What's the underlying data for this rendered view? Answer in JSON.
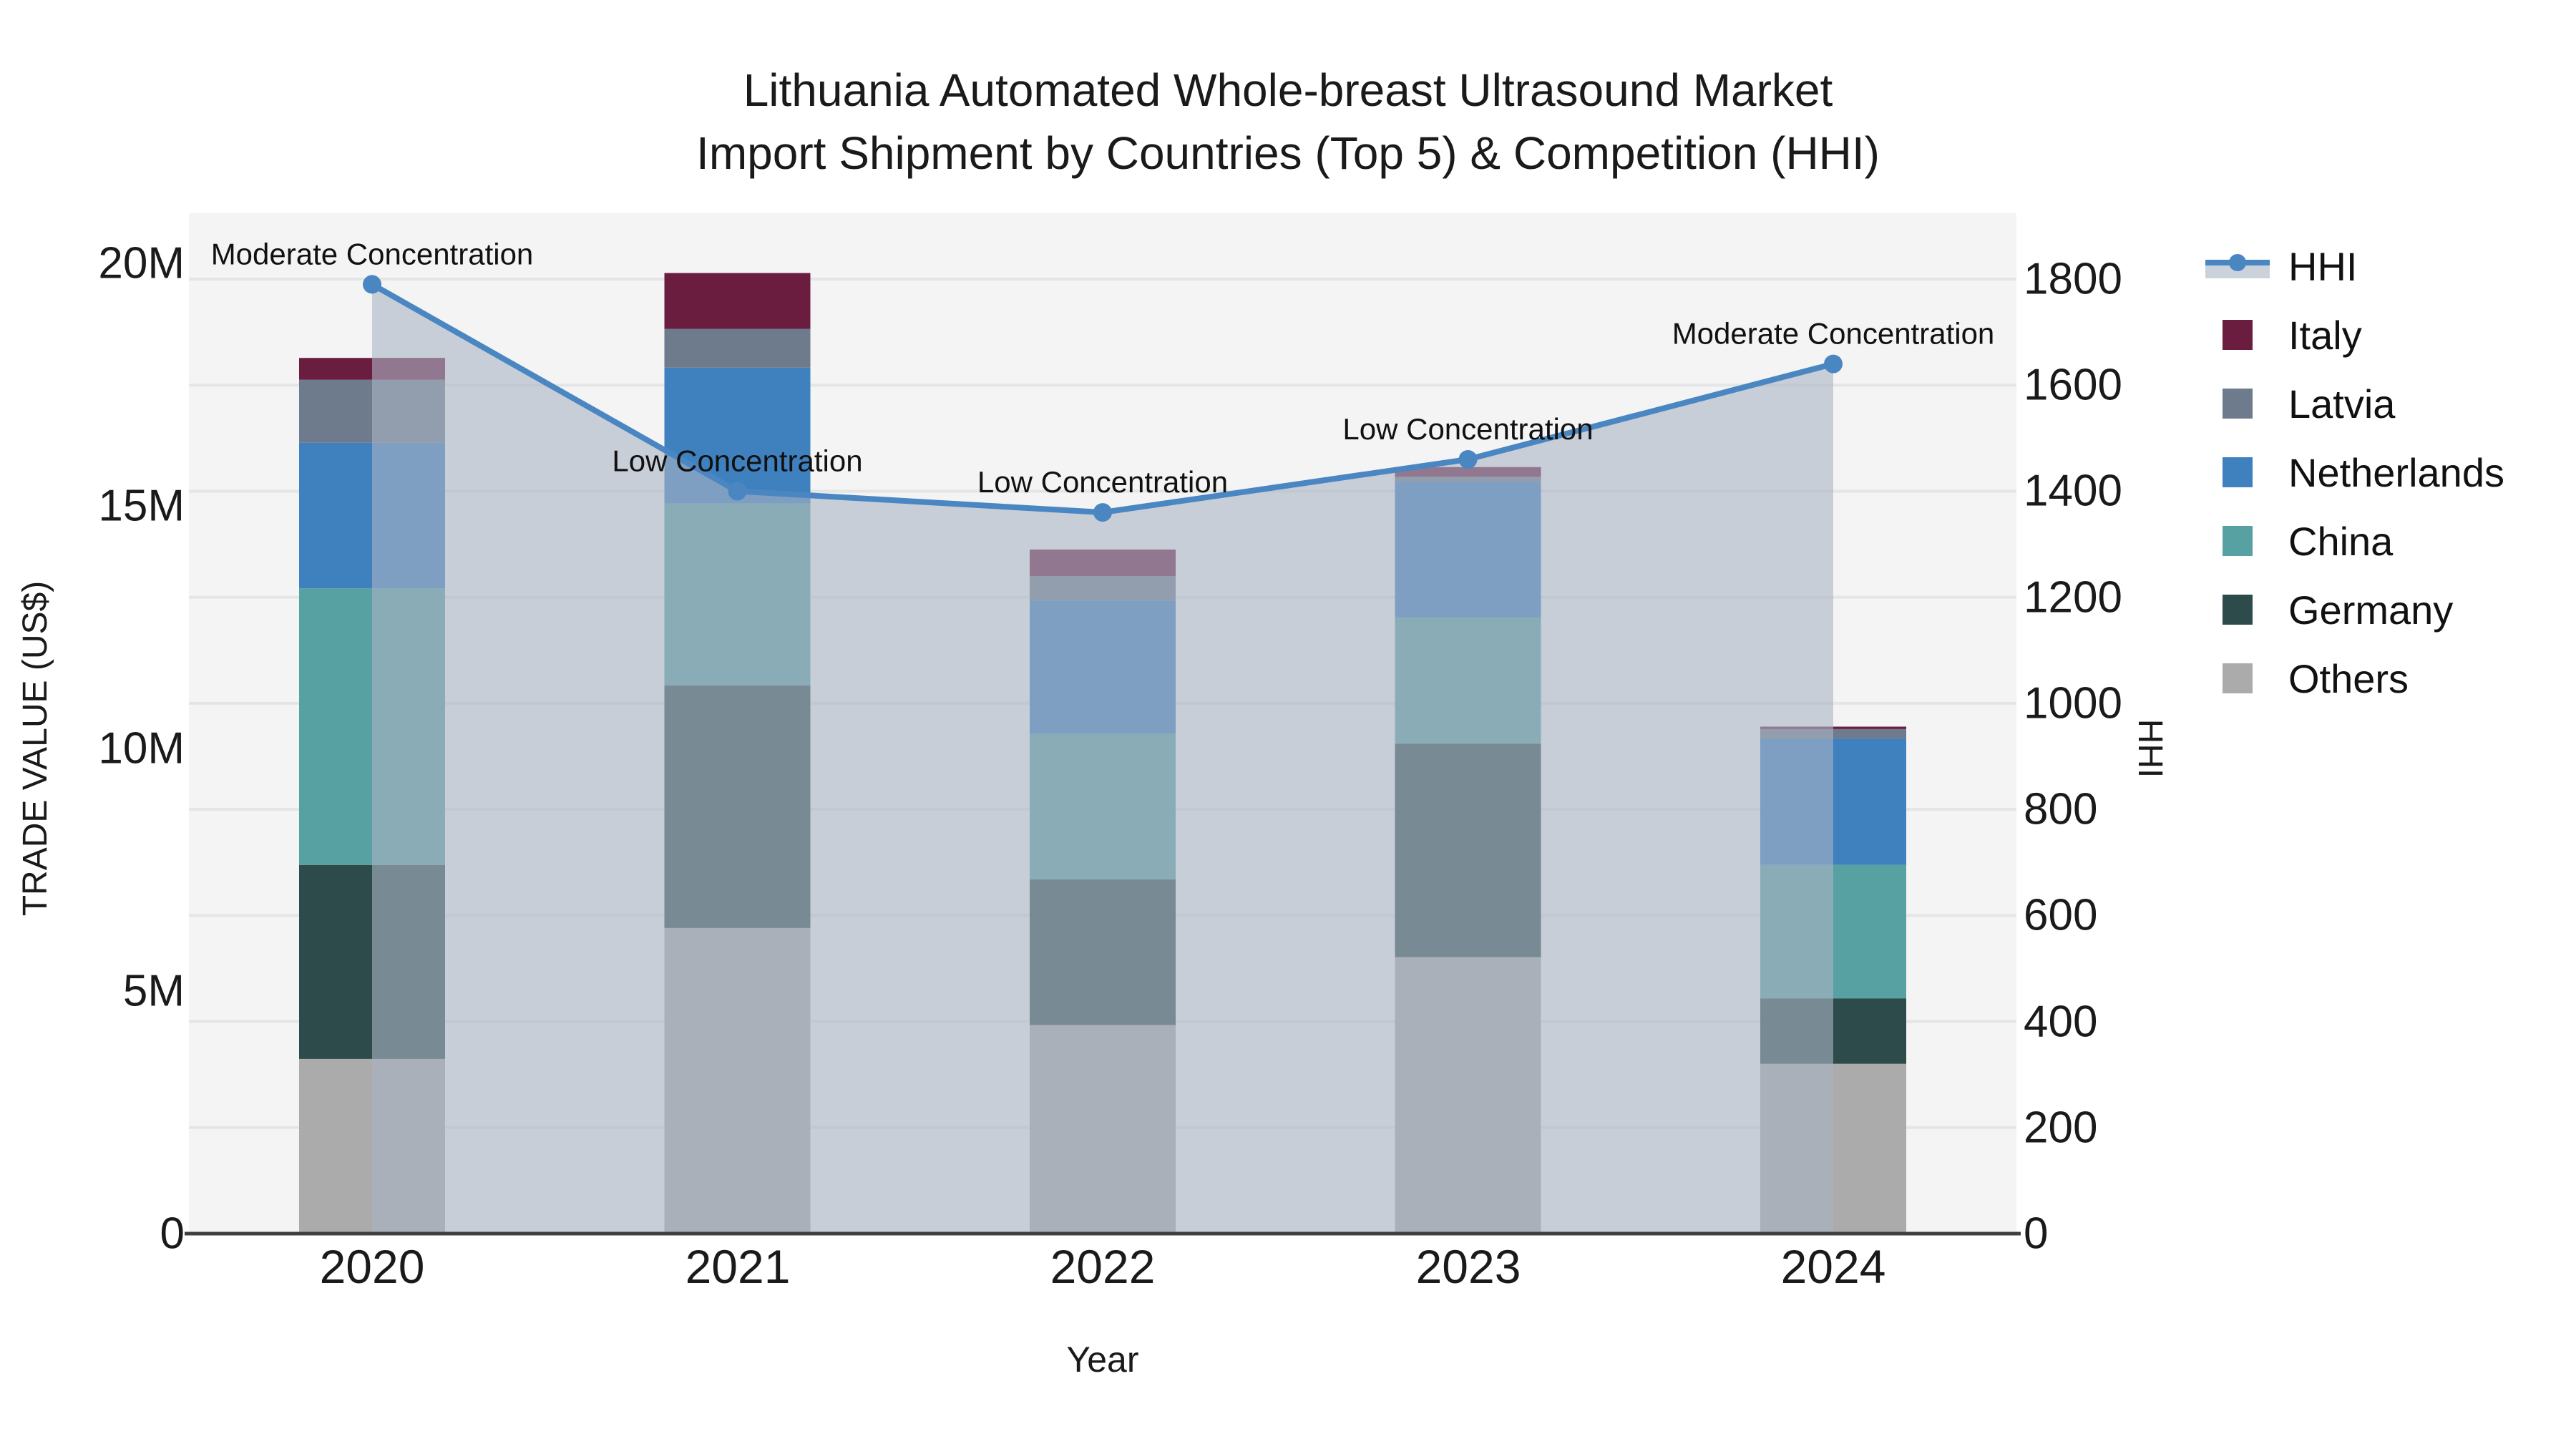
{
  "title": {
    "line1": "Lithuania Automated Whole-breast Ultrasound Market",
    "line2": "Import Shipment by Countries (Top 5) & Competition (HHI)"
  },
  "axes": {
    "left": {
      "label": "TRADE VALUE (US$)",
      "ticks": [
        "0",
        "5M",
        "10M",
        "15M",
        "20M"
      ]
    },
    "right": {
      "label": "HHI",
      "ticks": [
        "0",
        "200",
        "400",
        "600",
        "800",
        "1000",
        "1200",
        "1400",
        "1600",
        "1800"
      ]
    },
    "x": {
      "label": "Year",
      "ticks": [
        "2020",
        "2021",
        "2022",
        "2023",
        "2024"
      ]
    }
  },
  "legend": {
    "items": [
      {
        "label": "HHI",
        "type": "line",
        "color": "#4a86c2"
      },
      {
        "label": "Italy",
        "type": "swatch",
        "color": "#6b1d40"
      },
      {
        "label": "Latvia",
        "type": "swatch",
        "color": "#6e7b8d"
      },
      {
        "label": "Netherlands",
        "type": "swatch",
        "color": "#3f80bf"
      },
      {
        "label": "China",
        "type": "swatch",
        "color": "#57a1a2"
      },
      {
        "label": "Germany",
        "type": "swatch",
        "color": "#2d4b4a"
      },
      {
        "label": "Others",
        "type": "swatch",
        "color": "#ababab"
      }
    ]
  },
  "chart_data": {
    "type": "bar",
    "subtype": "stacked-bars-with-line-overlay-and-area-fill",
    "title": "Lithuania Automated Whole-breast Ultrasound Market Import Shipment by Countries (Top 5) & Competition (HHI)",
    "categories": [
      "2020",
      "2021",
      "2022",
      "2023",
      "2024"
    ],
    "value_unit": "million US$",
    "stack_order": "first series listed is bottom of stack",
    "series": [
      {
        "name": "Others",
        "color": "#ababab",
        "values": [
          3.6,
          6.3,
          4.3,
          5.7,
          3.5
        ]
      },
      {
        "name": "Germany",
        "color": "#2d4b4a",
        "values": [
          4.0,
          5.0,
          3.0,
          4.4,
          1.35
        ]
      },
      {
        "name": "China",
        "color": "#57a1a2",
        "values": [
          5.7,
          3.75,
          3.0,
          2.6,
          2.75
        ]
      },
      {
        "name": "Netherlands",
        "color": "#3f80bf",
        "values": [
          3.0,
          2.8,
          2.75,
          2.8,
          2.6
        ]
      },
      {
        "name": "Latvia",
        "color": "#6e7b8d",
        "values": [
          1.3,
          0.8,
          0.5,
          0.1,
          0.2
        ]
      },
      {
        "name": "Italy",
        "color": "#6b1d40",
        "values": [
          0.45,
          1.15,
          0.55,
          0.2,
          0.05
        ]
      }
    ],
    "bar_totals_millions": [
      18.05,
      19.8,
      14.1,
      15.8,
      10.45
    ],
    "line_series": {
      "name": "HHI",
      "color": "#4a86c2",
      "area_fill": "rgba(170,180,197,0.6)",
      "values": [
        1790,
        1400,
        1360,
        1460,
        1640
      ]
    },
    "annotations": [
      "Moderate Concentration",
      "Low Concentration",
      "Low Concentration",
      "Low Concentration",
      "Moderate Concentration"
    ],
    "xlabel": "Year",
    "ylabel_left": "TRADE VALUE (US$)",
    "ylabel_right": "HHI",
    "ylim_left_millions": [
      0,
      20
    ],
    "ylim_right": [
      0,
      1800
    ],
    "grid": "horizontal gridlines every 200 HHI",
    "legend_position": "right",
    "plot_background": "#f3f4f3",
    "gridline_color": "#e3e5e7",
    "baseline_color": "#3f3f3f"
  }
}
